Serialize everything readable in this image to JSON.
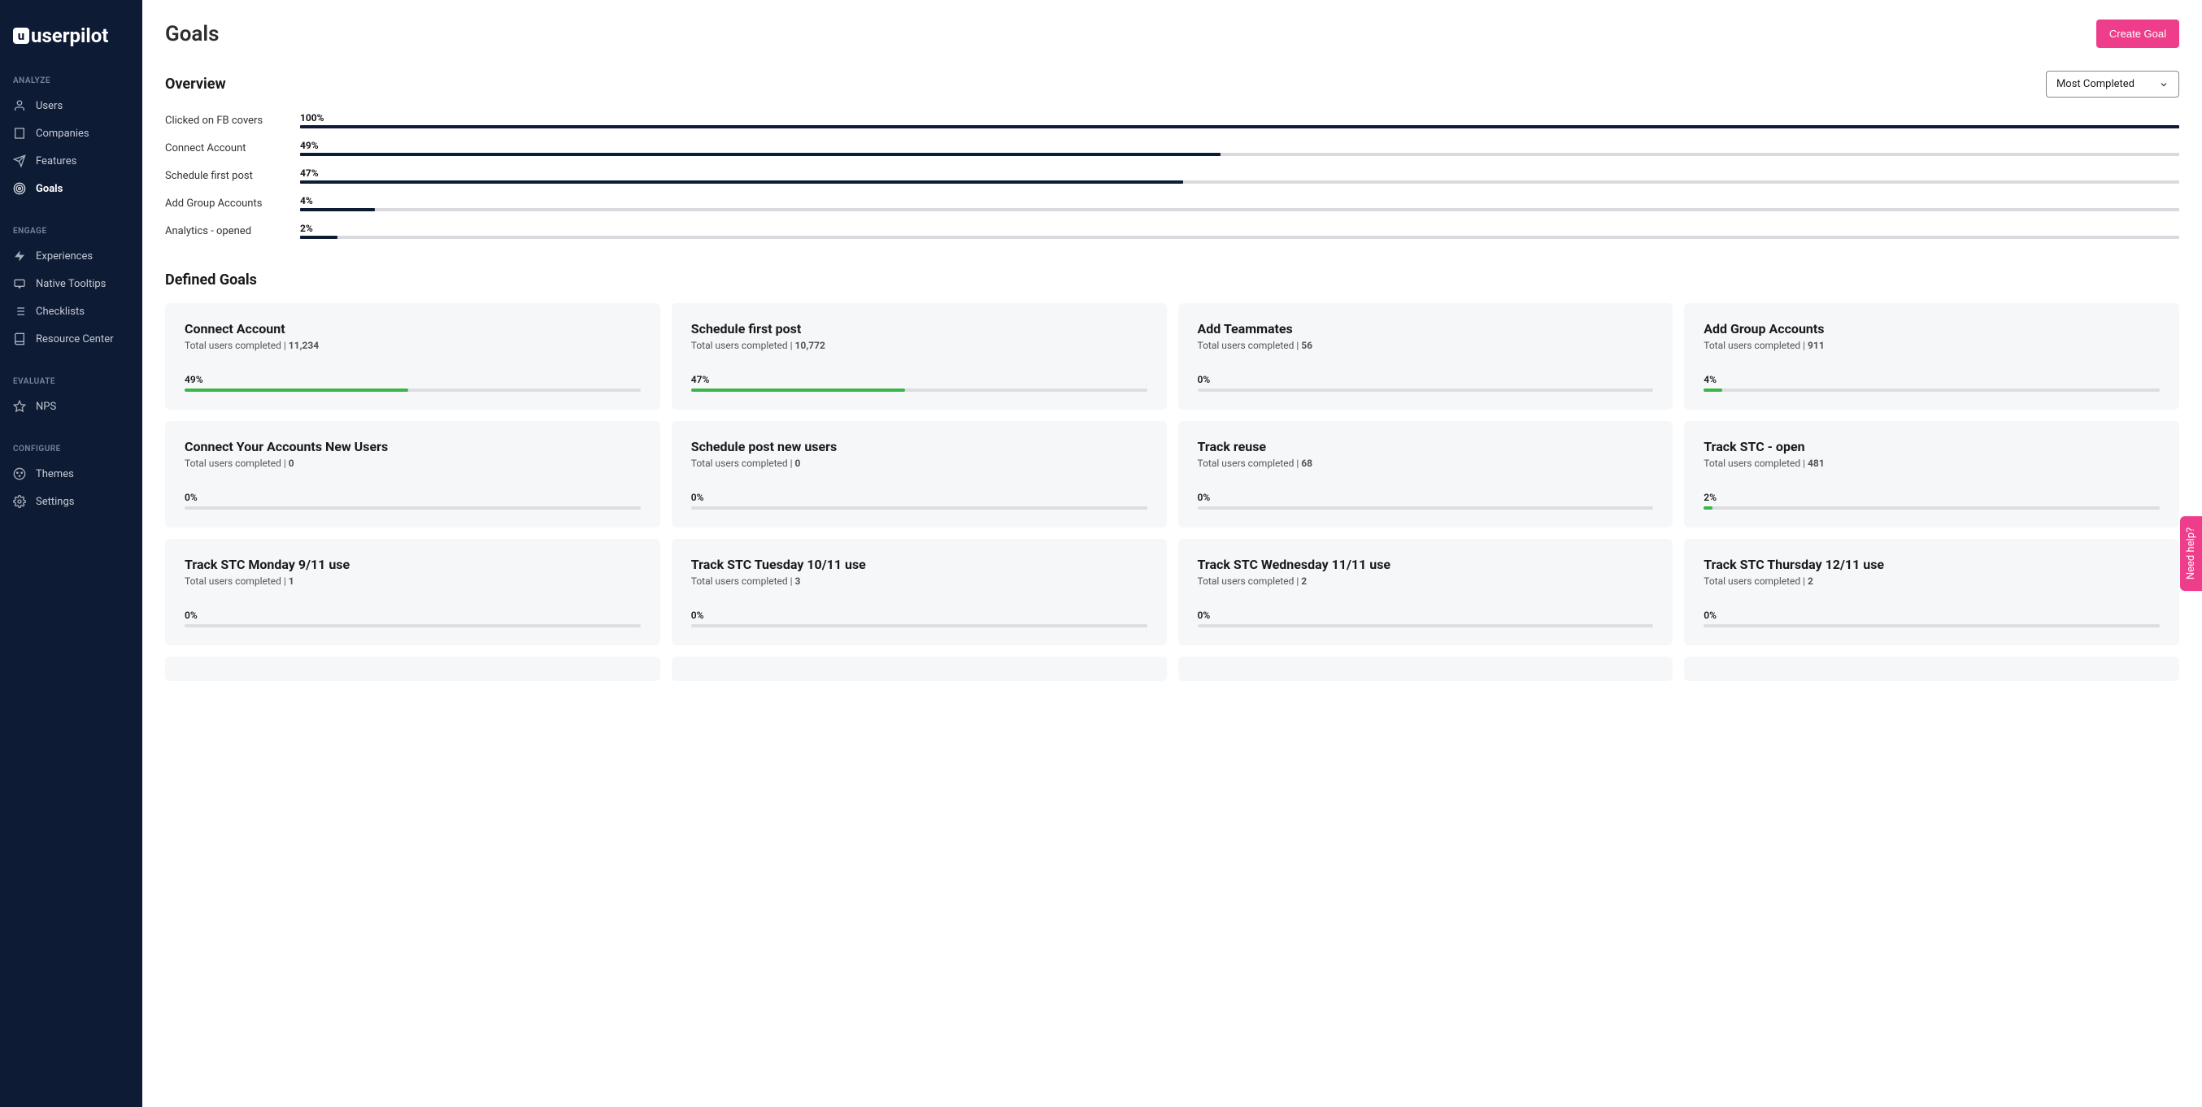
{
  "brand": "userpilot",
  "page": {
    "title": "Goals",
    "create_button": "Create Goal"
  },
  "sort": {
    "selected": "Most Completed"
  },
  "help_tab": "Need help?",
  "sidebar": {
    "sections": [
      {
        "label": "ANALYZE",
        "items": [
          {
            "name": "Users",
            "icon": "user"
          },
          {
            "name": "Companies",
            "icon": "building"
          },
          {
            "name": "Features",
            "icon": "send"
          },
          {
            "name": "Goals",
            "icon": "target",
            "active": true
          }
        ]
      },
      {
        "label": "ENGAGE",
        "items": [
          {
            "name": "Experiences",
            "icon": "bolt"
          },
          {
            "name": "Native Tooltips",
            "icon": "tooltip"
          },
          {
            "name": "Checklists",
            "icon": "list"
          },
          {
            "name": "Resource Center",
            "icon": "book"
          }
        ]
      },
      {
        "label": "EVALUATE",
        "items": [
          {
            "name": "NPS",
            "icon": "star"
          }
        ]
      },
      {
        "label": "CONFIGURE",
        "items": [
          {
            "name": "Themes",
            "icon": "palette"
          },
          {
            "name": "Settings",
            "icon": "gear"
          }
        ]
      }
    ]
  },
  "overview": {
    "title": "Overview",
    "bar_color": "#0e1b35",
    "track_color": "#d8dadd",
    "rows": [
      {
        "label": "Clicked on FB covers",
        "pct": 100
      },
      {
        "label": "Connect Account",
        "pct": 49
      },
      {
        "label": "Schedule first post",
        "pct": 47
      },
      {
        "label": "Add Group Accounts",
        "pct": 4
      },
      {
        "label": "Analytics - opened",
        "pct": 2
      }
    ]
  },
  "defined": {
    "title": "Defined Goals",
    "sub_prefix": "Total users completed | ",
    "bar_color": "#3ab549",
    "track_color": "#dcdee1",
    "card_bg": "#f6f7f9",
    "goals": [
      {
        "title": "Connect Account",
        "count": "11,234",
        "pct": 49
      },
      {
        "title": "Schedule first post",
        "count": "10,772",
        "pct": 47
      },
      {
        "title": "Add Teammates",
        "count": "56",
        "pct": 0
      },
      {
        "title": "Add Group Accounts",
        "count": "911",
        "pct": 4
      },
      {
        "title": "Connect Your Accounts New Users",
        "count": "0",
        "pct": 0
      },
      {
        "title": "Schedule post new users",
        "count": "0",
        "pct": 0
      },
      {
        "title": "Track reuse",
        "count": "68",
        "pct": 0
      },
      {
        "title": "Track STC - open",
        "count": "481",
        "pct": 2
      },
      {
        "title": "Track STC Monday 9/11 use",
        "count": "1",
        "pct": 0
      },
      {
        "title": "Track STC Tuesday 10/11 use",
        "count": "3",
        "pct": 0
      },
      {
        "title": "Track STC Wednesday 11/11 use",
        "count": "2",
        "pct": 0
      },
      {
        "title": "Track STC Thursday 12/11 use",
        "count": "2",
        "pct": 0
      }
    ]
  },
  "colors": {
    "brand_pink": "#ee3d8b",
    "sidebar_bg": "#0e1b35"
  }
}
